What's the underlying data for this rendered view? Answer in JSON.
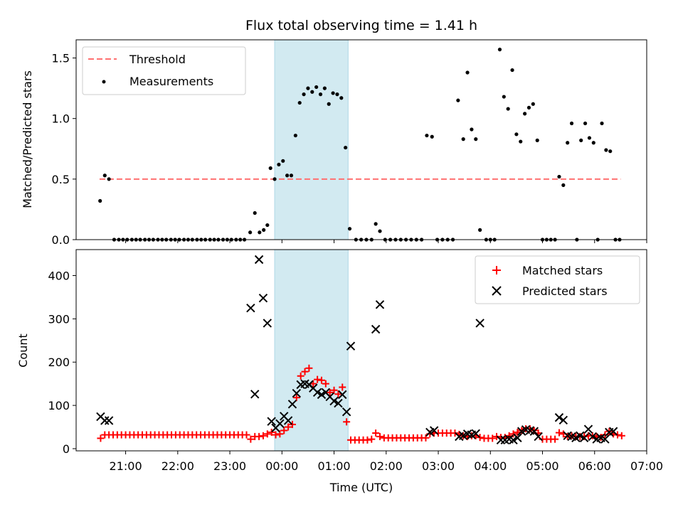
{
  "chart_data": {
    "type": "scatter",
    "title": "Flux total observing time = 1.41 h",
    "xlabel": "Time (UTC)",
    "x_unit": "hours after 20:00 UTC",
    "xlim": [
      0.05,
      11.0
    ],
    "xticks": [
      {
        "value": 1,
        "label": "21:00"
      },
      {
        "value": 2,
        "label": "22:00"
      },
      {
        "value": 3,
        "label": "23:00"
      },
      {
        "value": 4,
        "label": "00:00"
      },
      {
        "value": 5,
        "label": "01:00"
      },
      {
        "value": 6,
        "label": "02:00"
      },
      {
        "value": 7,
        "label": "03:00"
      },
      {
        "value": 8,
        "label": "04:00"
      },
      {
        "value": 9,
        "label": "05:00"
      },
      {
        "value": 10,
        "label": "06:00"
      },
      {
        "value": 11,
        "label": "07:00"
      }
    ],
    "shaded_span": [
      3.86,
      5.27
    ],
    "colors": {
      "threshold": "#ff7070",
      "shade": "#add8e6",
      "matched": "#ff0000",
      "predicted": "#000000",
      "measurements": "#000000"
    },
    "top": {
      "ylabel": "Matched/Predicted stars",
      "ylim": [
        0,
        1.65
      ],
      "yticks": [
        {
          "value": 0,
          "label": "0.0"
        },
        {
          "value": 0.5,
          "label": "0.5"
        },
        {
          "value": 1.0,
          "label": "1.0"
        },
        {
          "value": 1.5,
          "label": "1.5"
        }
      ],
      "threshold": {
        "value": 0.5,
        "x_range": [
          0.5,
          10.5
        ]
      },
      "legend": {
        "position": "top-left",
        "entries": [
          "Threshold",
          "Measurements"
        ]
      },
      "measurements": [
        [
          0.51,
          0.32
        ],
        [
          0.6,
          0.53
        ],
        [
          0.68,
          0.5
        ],
        [
          0.78,
          0
        ],
        [
          0.87,
          0
        ],
        [
          0.95,
          0
        ],
        [
          1.03,
          0
        ],
        [
          1.12,
          0
        ],
        [
          1.2,
          0
        ],
        [
          1.28,
          0
        ],
        [
          1.37,
          0
        ],
        [
          1.45,
          0
        ],
        [
          1.53,
          0
        ],
        [
          1.62,
          0
        ],
        [
          1.7,
          0
        ],
        [
          1.78,
          0
        ],
        [
          1.87,
          0
        ],
        [
          1.95,
          0
        ],
        [
          2.03,
          0
        ],
        [
          2.12,
          0
        ],
        [
          2.2,
          0
        ],
        [
          2.28,
          0
        ],
        [
          2.37,
          0
        ],
        [
          2.45,
          0
        ],
        [
          2.53,
          0
        ],
        [
          2.62,
          0
        ],
        [
          2.7,
          0
        ],
        [
          2.78,
          0
        ],
        [
          2.87,
          0
        ],
        [
          2.95,
          0
        ],
        [
          3.03,
          0
        ],
        [
          3.12,
          0
        ],
        [
          3.2,
          0
        ],
        [
          3.28,
          0
        ],
        [
          3.39,
          0.06
        ],
        [
          3.48,
          0.22
        ],
        [
          3.57,
          0.06
        ],
        [
          3.65,
          0.08
        ],
        [
          3.72,
          0.12
        ],
        [
          3.78,
          0.59
        ],
        [
          3.86,
          0.5
        ],
        [
          3.94,
          0.62
        ],
        [
          4.02,
          0.65
        ],
        [
          4.1,
          0.53
        ],
        [
          4.18,
          0.53
        ],
        [
          4.26,
          0.86
        ],
        [
          4.34,
          1.13
        ],
        [
          4.42,
          1.2
        ],
        [
          4.5,
          1.25
        ],
        [
          4.58,
          1.22
        ],
        [
          4.66,
          1.26
        ],
        [
          4.74,
          1.2
        ],
        [
          4.82,
          1.25
        ],
        [
          4.9,
          1.12
        ],
        [
          4.98,
          1.21
        ],
        [
          5.06,
          1.2
        ],
        [
          5.14,
          1.17
        ],
        [
          5.22,
          0.76
        ],
        [
          5.3,
          0.09
        ],
        [
          5.42,
          0
        ],
        [
          5.52,
          0
        ],
        [
          5.62,
          0
        ],
        [
          5.72,
          0
        ],
        [
          5.8,
          0.13
        ],
        [
          5.88,
          0.07
        ],
        [
          5.98,
          0
        ],
        [
          6.08,
          0
        ],
        [
          6.18,
          0
        ],
        [
          6.28,
          0
        ],
        [
          6.38,
          0
        ],
        [
          6.48,
          0
        ],
        [
          6.58,
          0
        ],
        [
          6.68,
          0
        ],
        [
          6.78,
          0.86
        ],
        [
          6.88,
          0.85
        ],
        [
          6.98,
          0
        ],
        [
          7.08,
          0
        ],
        [
          7.18,
          0
        ],
        [
          7.28,
          0
        ],
        [
          7.38,
          1.15
        ],
        [
          7.48,
          0.83
        ],
        [
          7.56,
          1.38
        ],
        [
          7.64,
          0.91
        ],
        [
          7.72,
          0.83
        ],
        [
          7.8,
          0.08
        ],
        [
          7.92,
          0
        ],
        [
          8.0,
          0
        ],
        [
          8.08,
          0
        ],
        [
          8.18,
          1.57
        ],
        [
          8.26,
          1.18
        ],
        [
          8.34,
          1.08
        ],
        [
          8.42,
          1.4
        ],
        [
          8.5,
          0.87
        ],
        [
          8.58,
          0.81
        ],
        [
          8.66,
          1.04
        ],
        [
          8.74,
          1.09
        ],
        [
          8.82,
          1.12
        ],
        [
          8.9,
          0.82
        ],
        [
          9.0,
          0
        ],
        [
          9.08,
          0
        ],
        [
          9.16,
          0
        ],
        [
          9.24,
          0
        ],
        [
          9.32,
          0.52
        ],
        [
          9.4,
          0.45
        ],
        [
          9.48,
          0.8
        ],
        [
          9.56,
          0.96
        ],
        [
          9.66,
          0
        ],
        [
          9.74,
          0.82
        ],
        [
          9.82,
          0.96
        ],
        [
          9.9,
          0.84
        ],
        [
          9.98,
          0.8
        ],
        [
          10.06,
          0
        ],
        [
          10.14,
          0.96
        ],
        [
          10.22,
          0.74
        ],
        [
          10.3,
          0.73
        ],
        [
          10.4,
          0
        ],
        [
          10.48,
          0
        ]
      ]
    },
    "bottom": {
      "ylabel": "Count",
      "ylim": [
        -5,
        460
      ],
      "yticks": [
        {
          "value": 0,
          "label": "0"
        },
        {
          "value": 100,
          "label": "100"
        },
        {
          "value": 200,
          "label": "200"
        },
        {
          "value": 300,
          "label": "300"
        },
        {
          "value": 400,
          "label": "400"
        }
      ],
      "legend": {
        "position": "top-right",
        "entries": [
          "Matched stars",
          "Predicted stars"
        ]
      },
      "matched_stars": [
        [
          0.52,
          24
        ],
        [
          0.6,
          32
        ],
        [
          0.68,
          32
        ],
        [
          0.76,
          32
        ],
        [
          0.84,
          32
        ],
        [
          0.92,
          32
        ],
        [
          1.0,
          32
        ],
        [
          1.08,
          32
        ],
        [
          1.16,
          32
        ],
        [
          1.24,
          32
        ],
        [
          1.32,
          32
        ],
        [
          1.4,
          32
        ],
        [
          1.48,
          32
        ],
        [
          1.56,
          32
        ],
        [
          1.64,
          32
        ],
        [
          1.72,
          32
        ],
        [
          1.8,
          32
        ],
        [
          1.88,
          32
        ],
        [
          1.96,
          32
        ],
        [
          2.04,
          32
        ],
        [
          2.12,
          32
        ],
        [
          2.2,
          32
        ],
        [
          2.28,
          32
        ],
        [
          2.36,
          32
        ],
        [
          2.44,
          32
        ],
        [
          2.52,
          32
        ],
        [
          2.6,
          32
        ],
        [
          2.68,
          32
        ],
        [
          2.76,
          32
        ],
        [
          2.84,
          32
        ],
        [
          2.92,
          32
        ],
        [
          3.0,
          32
        ],
        [
          3.08,
          32
        ],
        [
          3.16,
          32
        ],
        [
          3.24,
          32
        ],
        [
          3.32,
          32
        ],
        [
          3.4,
          22
        ],
        [
          3.48,
          28
        ],
        [
          3.56,
          28
        ],
        [
          3.64,
          30
        ],
        [
          3.72,
          34
        ],
        [
          3.8,
          38
        ],
        [
          3.88,
          32
        ],
        [
          3.96,
          34
        ],
        [
          4.04,
          42
        ],
        [
          4.12,
          50
        ],
        [
          4.2,
          56
        ],
        [
          4.28,
          118
        ],
        [
          4.36,
          168
        ],
        [
          4.44,
          178
        ],
        [
          4.52,
          186
        ],
        [
          4.6,
          150
        ],
        [
          4.68,
          160
        ],
        [
          4.76,
          158
        ],
        [
          4.84,
          150
        ],
        [
          4.92,
          130
        ],
        [
          5.0,
          135
        ],
        [
          5.08,
          126
        ],
        [
          5.16,
          142
        ],
        [
          5.24,
          62
        ],
        [
          5.32,
          20
        ],
        [
          5.4,
          20
        ],
        [
          5.48,
          20
        ],
        [
          5.56,
          20
        ],
        [
          5.64,
          20
        ],
        [
          5.72,
          22
        ],
        [
          5.8,
          36
        ],
        [
          5.88,
          28
        ],
        [
          5.96,
          25
        ],
        [
          6.04,
          25
        ],
        [
          6.12,
          25
        ],
        [
          6.2,
          25
        ],
        [
          6.28,
          25
        ],
        [
          6.36,
          25
        ],
        [
          6.44,
          25
        ],
        [
          6.52,
          25
        ],
        [
          6.6,
          25
        ],
        [
          6.68,
          25
        ],
        [
          6.76,
          25
        ],
        [
          6.84,
          34
        ],
        [
          6.92,
          36
        ],
        [
          7.0,
          36
        ],
        [
          7.08,
          36
        ],
        [
          7.16,
          36
        ],
        [
          7.24,
          36
        ],
        [
          7.32,
          36
        ],
        [
          7.4,
          33
        ],
        [
          7.48,
          30
        ],
        [
          7.56,
          28
        ],
        [
          7.64,
          30
        ],
        [
          7.72,
          30
        ],
        [
          7.8,
          26
        ],
        [
          7.88,
          24
        ],
        [
          7.96,
          24
        ],
        [
          8.04,
          24
        ],
        [
          8.12,
          28
        ],
        [
          8.2,
          26
        ],
        [
          8.28,
          26
        ],
        [
          8.36,
          30
        ],
        [
          8.44,
          34
        ],
        [
          8.52,
          38
        ],
        [
          8.6,
          42
        ],
        [
          8.68,
          46
        ],
        [
          8.76,
          46
        ],
        [
          8.84,
          42
        ],
        [
          8.92,
          36
        ],
        [
          9.0,
          22
        ],
        [
          9.08,
          22
        ],
        [
          9.16,
          22
        ],
        [
          9.24,
          22
        ],
        [
          9.32,
          37
        ],
        [
          9.4,
          34
        ],
        [
          9.48,
          28
        ],
        [
          9.56,
          30
        ],
        [
          9.64,
          28
        ],
        [
          9.72,
          28
        ],
        [
          9.8,
          28
        ],
        [
          9.88,
          30
        ],
        [
          9.96,
          30
        ],
        [
          10.04,
          28
        ],
        [
          10.12,
          26
        ],
        [
          10.2,
          32
        ],
        [
          10.28,
          40
        ],
        [
          10.36,
          34
        ],
        [
          10.44,
          32
        ],
        [
          10.52,
          30
        ]
      ],
      "predicted_stars": [
        [
          0.52,
          74
        ],
        [
          0.6,
          65
        ],
        [
          0.68,
          65
        ],
        [
          3.4,
          325
        ],
        [
          3.48,
          126
        ],
        [
          3.56,
          437
        ],
        [
          3.64,
          348
        ],
        [
          3.72,
          290
        ],
        [
          3.8,
          63
        ],
        [
          3.88,
          48
        ],
        [
          3.96,
          58
        ],
        [
          4.04,
          75
        ],
        [
          4.12,
          65
        ],
        [
          4.2,
          103
        ],
        [
          4.28,
          128
        ],
        [
          4.36,
          148
        ],
        [
          4.44,
          150
        ],
        [
          4.52,
          148
        ],
        [
          4.6,
          140
        ],
        [
          4.68,
          130
        ],
        [
          4.76,
          125
        ],
        [
          4.84,
          130
        ],
        [
          4.92,
          120
        ],
        [
          5.0,
          110
        ],
        [
          5.08,
          105
        ],
        [
          5.16,
          125
        ],
        [
          5.24,
          85
        ],
        [
          5.32,
          237
        ],
        [
          5.8,
          276
        ],
        [
          5.88,
          333
        ],
        [
          6.84,
          38
        ],
        [
          6.92,
          42
        ],
        [
          7.4,
          28
        ],
        [
          7.48,
          30
        ],
        [
          7.56,
          34
        ],
        [
          7.64,
          32
        ],
        [
          7.72,
          35
        ],
        [
          7.8,
          290
        ],
        [
          8.2,
          20
        ],
        [
          8.28,
          20
        ],
        [
          8.36,
          22
        ],
        [
          8.44,
          20
        ],
        [
          8.52,
          25
        ],
        [
          8.6,
          40
        ],
        [
          8.68,
          44
        ],
        [
          8.76,
          42
        ],
        [
          8.84,
          40
        ],
        [
          8.92,
          28
        ],
        [
          9.32,
          72
        ],
        [
          9.4,
          66
        ],
        [
          9.48,
          30
        ],
        [
          9.56,
          28
        ],
        [
          9.64,
          25
        ],
        [
          9.72,
          30
        ],
        [
          9.8,
          25
        ],
        [
          9.88,
          45
        ],
        [
          9.96,
          28
        ],
        [
          10.04,
          22
        ],
        [
          10.12,
          25
        ],
        [
          10.2,
          22
        ],
        [
          10.28,
          38
        ],
        [
          10.36,
          40
        ]
      ]
    }
  }
}
